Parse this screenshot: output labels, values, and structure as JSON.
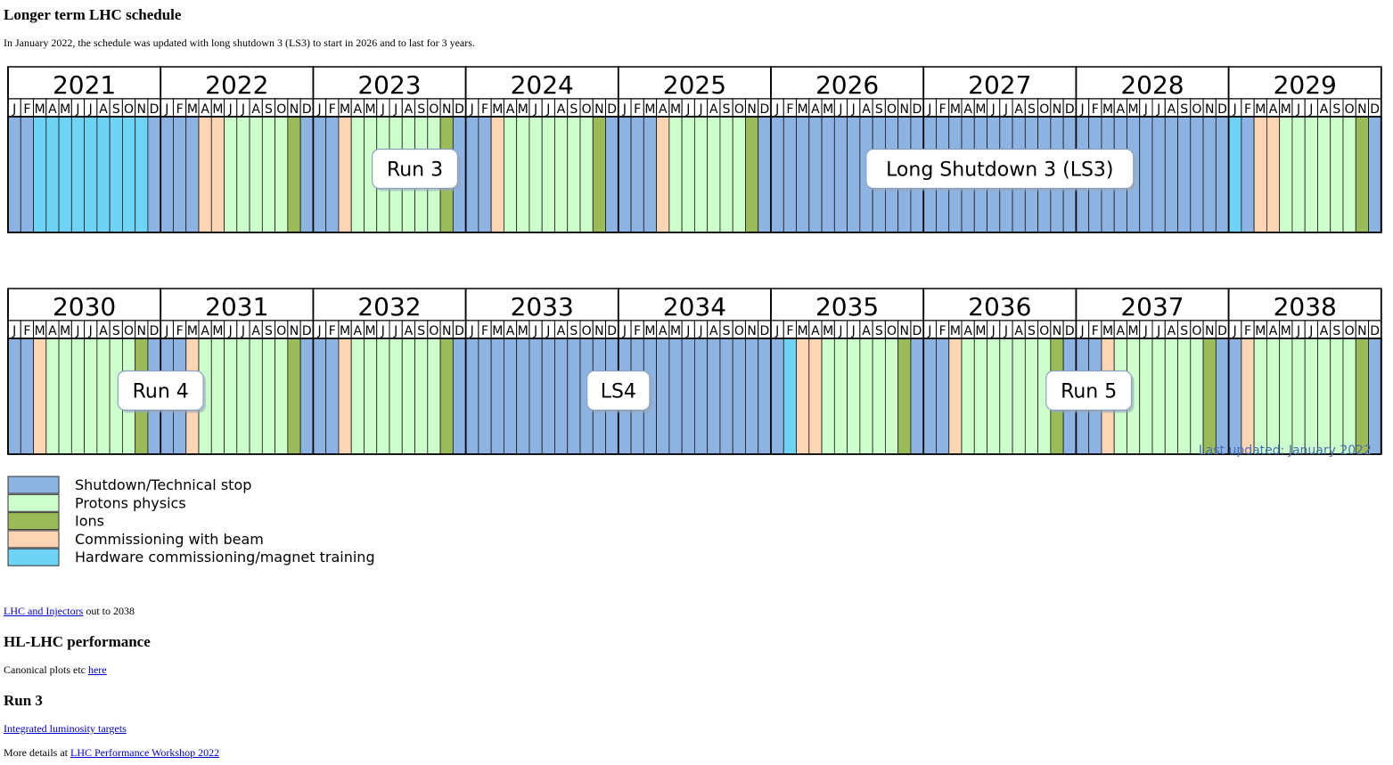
{
  "page": {
    "title": "Longer term LHC schedule",
    "intro": "In January 2022, the schedule was updated with long shutdown 3 (LS3) to start in 2026 and to last for 3 years."
  },
  "schedule": {
    "month_letters": [
      "J",
      "F",
      "M",
      "A",
      "M",
      "J",
      "J",
      "A",
      "S",
      "O",
      "N",
      "D"
    ],
    "colors": {
      "S": "#8db3e2",
      "P": "#ccffcc",
      "I": "#9bbb59",
      "C": "#fcd5b4",
      "H": "#6fd3f5"
    },
    "rows": [
      {
        "years": [
          {
            "year": "2021",
            "months": [
              "S",
              "S",
              "H",
              "H",
              "H",
              "H",
              "H",
              "H",
              "H",
              "H",
              "H",
              "S"
            ]
          },
          {
            "year": "2022",
            "months": [
              "S",
              "S",
              "S",
              "C",
              "C",
              "P",
              "P",
              "P",
              "P",
              "P",
              "I",
              "S"
            ]
          },
          {
            "year": "2023",
            "months": [
              "S",
              "S",
              "C",
              "P",
              "P",
              "P",
              "P",
              "P",
              "P",
              "P",
              "I",
              "S"
            ]
          },
          {
            "year": "2024",
            "months": [
              "S",
              "S",
              "C",
              "P",
              "P",
              "P",
              "P",
              "P",
              "P",
              "P",
              "I",
              "S"
            ]
          },
          {
            "year": "2025",
            "months": [
              "S",
              "S",
              "S",
              "C",
              "P",
              "P",
              "P",
              "P",
              "P",
              "P",
              "I",
              "S"
            ]
          },
          {
            "year": "2026",
            "months": [
              "S",
              "S",
              "S",
              "S",
              "S",
              "S",
              "S",
              "S",
              "S",
              "S",
              "S",
              "S"
            ]
          },
          {
            "year": "2027",
            "months": [
              "S",
              "S",
              "S",
              "S",
              "S",
              "S",
              "S",
              "S",
              "S",
              "S",
              "S",
              "S"
            ]
          },
          {
            "year": "2028",
            "months": [
              "S",
              "S",
              "S",
              "S",
              "S",
              "S",
              "S",
              "S",
              "S",
              "S",
              "S",
              "S"
            ]
          },
          {
            "year": "2029",
            "months": [
              "H",
              "S",
              "C",
              "C",
              "P",
              "P",
              "P",
              "P",
              "P",
              "P",
              "I",
              "S"
            ]
          }
        ],
        "labels": [
          {
            "text": "Run 3",
            "year_index": 2,
            "month_index": 8
          },
          {
            "text": "Long Shutdown 3 (LS3)",
            "year_index": 6,
            "month_index": 6
          }
        ]
      },
      {
        "years": [
          {
            "year": "2030",
            "months": [
              "S",
              "S",
              "C",
              "P",
              "P",
              "P",
              "P",
              "P",
              "P",
              "P",
              "I",
              "S"
            ]
          },
          {
            "year": "2031",
            "months": [
              "S",
              "S",
              "C",
              "P",
              "P",
              "P",
              "P",
              "P",
              "P",
              "P",
              "I",
              "S"
            ]
          },
          {
            "year": "2032",
            "months": [
              "S",
              "S",
              "C",
              "P",
              "P",
              "P",
              "P",
              "P",
              "P",
              "P",
              "I",
              "S"
            ]
          },
          {
            "year": "2033",
            "months": [
              "S",
              "S",
              "S",
              "S",
              "S",
              "S",
              "S",
              "S",
              "S",
              "S",
              "S",
              "S"
            ]
          },
          {
            "year": "2034",
            "months": [
              "S",
              "S",
              "S",
              "S",
              "S",
              "S",
              "S",
              "S",
              "S",
              "S",
              "S",
              "S"
            ]
          },
          {
            "year": "2035",
            "months": [
              "S",
              "H",
              "C",
              "C",
              "P",
              "P",
              "P",
              "P",
              "P",
              "P",
              "I",
              "S"
            ]
          },
          {
            "year": "2036",
            "months": [
              "S",
              "S",
              "C",
              "P",
              "P",
              "P",
              "P",
              "P",
              "P",
              "P",
              "I",
              "S"
            ]
          },
          {
            "year": "2037",
            "months": [
              "S",
              "S",
              "C",
              "P",
              "P",
              "P",
              "P",
              "P",
              "P",
              "P",
              "I",
              "S"
            ]
          },
          {
            "year": "2038",
            "months": [
              "S",
              "C",
              "P",
              "P",
              "P",
              "P",
              "P",
              "P",
              "P",
              "P",
              "I",
              "S"
            ]
          }
        ],
        "labels": [
          {
            "text": "Run 4",
            "year_index": 1,
            "month_index": 0
          },
          {
            "text": "LS4",
            "year_index": 4,
            "month_index": 0
          },
          {
            "text": "Run 5",
            "year_index": 7,
            "month_index": 1
          }
        ]
      }
    ],
    "last_updated": "Last updated: January 2022",
    "legend": [
      {
        "key": "S",
        "label": "Shutdown/Technical stop"
      },
      {
        "key": "P",
        "label": "Protons physics"
      },
      {
        "key": "I",
        "label": "Ions"
      },
      {
        "key": "C",
        "label": "Commissioning with beam"
      },
      {
        "key": "H",
        "label": "Hardware commissioning/magnet training"
      }
    ]
  },
  "links": {
    "lhc_injectors_link": "LHC and Injectors",
    "lhc_injectors_suffix": " out to 2038",
    "hl_heading": "HL-LHC performance",
    "canonical_prefix": "Canonical plots etc ",
    "canonical_link": "here",
    "run3_heading": "Run 3",
    "lumi_link": "Integrated luminosity targets",
    "more_prefix": "More details at ",
    "workshop_link": "LHC Performance Workshop 2022"
  }
}
